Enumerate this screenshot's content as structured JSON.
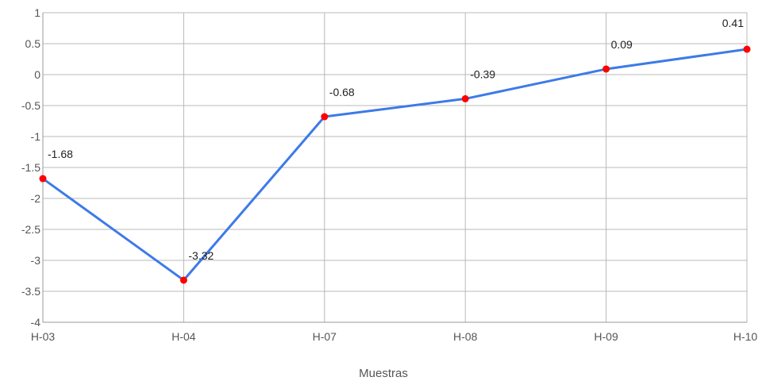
{
  "chart_data": {
    "type": "line",
    "title": "",
    "xlabel": "Muestras",
    "ylabel": "",
    "categories": [
      "H-03",
      "H-04",
      "H-07",
      "H-08",
      "H-09",
      "H-10"
    ],
    "series": [
      {
        "values": [
          -1.68,
          -3.32,
          -0.68,
          -0.39,
          0.09,
          0.41
        ],
        "line_color": "#3d7ae8",
        "marker_color": "#ff0000"
      }
    ],
    "data_labels": [
      "-1.68",
      "-3.32",
      "-0.68",
      "-0.39",
      "0.09",
      "0.41"
    ],
    "y_ticks": [
      1,
      0.5,
      0,
      -0.5,
      -1,
      -1.5,
      -2,
      -2.5,
      -3,
      -3.5,
      -4
    ],
    "y_tick_labels": [
      "1",
      "0.5",
      "0",
      "-0.5",
      "-1",
      "-1.5",
      "-2",
      "-2.5",
      "-3",
      "-3.5",
      "-4"
    ],
    "ylim": [
      -4,
      1
    ],
    "grid": true,
    "legend": "none"
  }
}
